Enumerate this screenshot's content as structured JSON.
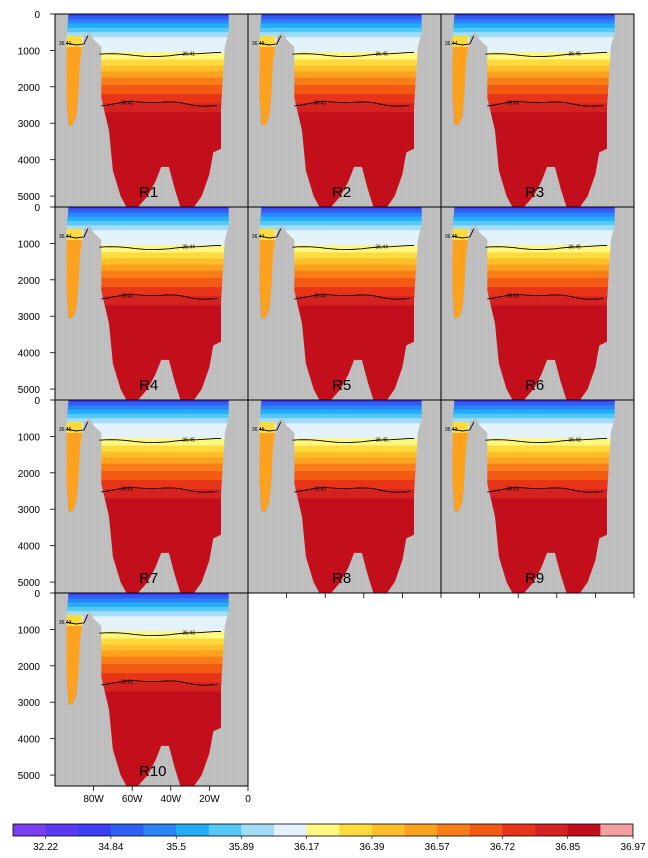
{
  "chart_data": {
    "type": "heatmap",
    "title": "",
    "xlabel": "",
    "ylabel": "",
    "x_ticks": [
      "80W",
      "60W",
      "40W",
      "20W",
      "0"
    ],
    "y_ticks": [
      "0",
      "1000",
      "2000",
      "3000",
      "4000",
      "5000"
    ],
    "x_range": [
      "100W",
      "0"
    ],
    "y_range": [
      5300,
      0
    ],
    "y_reversed": true,
    "layout": "4 rows x 3 columns, shared axes",
    "missing_value_color": "#c0c0c0",
    "colorbar": {
      "placement": "bottom",
      "labels": [
        "32.22",
        "34.84",
        "35.5",
        "35.89",
        "36.17",
        "36.39",
        "36.57",
        "36.72",
        "36.85",
        "36.97"
      ],
      "colors": [
        "#7a3ff0",
        "#5a3af2",
        "#3a3ff5",
        "#2f5ff7",
        "#2c84f7",
        "#22aef7",
        "#55c8f5",
        "#a2dcf7",
        "#e3f2fb",
        "#fef780",
        "#fedb3c",
        "#ffbf2a",
        "#fda21e",
        "#f97e1a",
        "#f35a14",
        "#e8351a",
        "#d52221",
        "#c20f1b",
        "#f4a0a0"
      ]
    },
    "panels": [
      {
        "label": "R1",
        "upper_contour": "36.41",
        "lower_contour": "36.43",
        "lower_contour_left": "36.41"
      },
      {
        "label": "R2",
        "upper_contour": "36.45",
        "lower_contour": "36.43",
        "lower_contour_left": "36.45"
      },
      {
        "label": "R3",
        "upper_contour": "36.45",
        "lower_contour": "36.69",
        "lower_contour_left": "36.44"
      },
      {
        "label": "R4",
        "upper_contour": "36.44",
        "lower_contour": "36.43",
        "lower_contour_left": "36.44"
      },
      {
        "label": "R5",
        "upper_contour": "36.44",
        "lower_contour": "36.43",
        "lower_contour_left": "36.44"
      },
      {
        "label": "R6",
        "upper_contour": "36.45",
        "lower_contour": "36.69",
        "lower_contour_left": "36.45"
      },
      {
        "label": "R7",
        "upper_contour": "36.45",
        "lower_contour": "36.69",
        "lower_contour_left": "36.45"
      },
      {
        "label": "R8",
        "upper_contour": "36.45",
        "lower_contour": "36.69",
        "lower_contour_left": "36.45"
      },
      {
        "label": "R9",
        "upper_contour": "36.43",
        "lower_contour": "36.69",
        "lower_contour_left": "36.43"
      },
      {
        "label": "R10",
        "upper_contour": "36.43",
        "lower_contour": "36.69",
        "lower_contour_left": "36.43"
      }
    ]
  }
}
